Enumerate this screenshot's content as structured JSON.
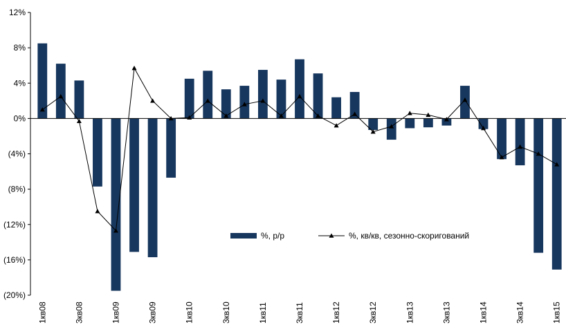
{
  "chart_data": {
    "type": "bar",
    "categories": [
      "1кв08",
      null,
      "3кв08",
      null,
      "1кв09",
      null,
      "3кв09",
      null,
      "1кв10",
      null,
      "3кв10",
      null,
      "1кв11",
      null,
      "3кв11",
      null,
      "1кв12",
      null,
      "3кв12",
      null,
      "1кв13",
      null,
      "3кв13",
      null,
      "1кв14",
      null,
      "3кв14",
      null,
      "1кв15"
    ],
    "series": [
      {
        "name": "%, р/р",
        "type": "bar",
        "color": "#17375e",
        "values": [
          8.5,
          6.2,
          4.3,
          -7.7,
          -19.5,
          -15.1,
          -15.7,
          -6.7,
          4.5,
          5.4,
          3.3,
          3.7,
          5.5,
          4.4,
          6.7,
          5.1,
          2.4,
          3.0,
          -1.3,
          -2.4,
          -1.1,
          -1.0,
          -0.8,
          3.7,
          -1.2,
          -4.6,
          -5.3,
          -15.2,
          -17.1
        ]
      },
      {
        "name": "%, кв/кв, сезонно-скоригований",
        "type": "line",
        "color": "#000000",
        "values": [
          1.0,
          2.5,
          -0.3,
          -10.5,
          -12.7,
          5.7,
          2.0,
          0,
          0.1,
          2.0,
          0.3,
          1.6,
          2.0,
          0.3,
          2.5,
          0.3,
          -0.8,
          0.5,
          -1.5,
          -0.9,
          0.6,
          0.4,
          -0.1,
          2.1,
          -1.1,
          -4.4,
          -3.2,
          -4.0,
          -5.2
        ]
      }
    ],
    "ylim": [
      -20,
      12
    ],
    "yticks": [
      {
        "value": -20,
        "label": "(20%)"
      },
      {
        "value": -16,
        "label": "(16%)"
      },
      {
        "value": -12,
        "label": "(12%)"
      },
      {
        "value": -8,
        "label": "(8%)"
      },
      {
        "value": -4,
        "label": "(4%)"
      },
      {
        "value": 0,
        "label": "0%"
      },
      {
        "value": 4,
        "label": "4%"
      },
      {
        "value": 8,
        "label": "8%"
      },
      {
        "value": 12,
        "label": "12%"
      }
    ],
    "grid": false
  }
}
